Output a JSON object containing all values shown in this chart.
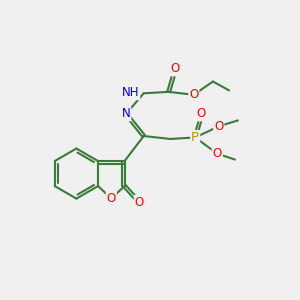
{
  "bg_color": "#f0f0f0",
  "bond_color": "#3a7a3a",
  "bond_width": 1.5,
  "atom_colors": {
    "O": "#ff0000",
    "N": "#0000cc",
    "P": "#cc8800",
    "H": "#5a9a5a"
  },
  "font_size": 8.5,
  "fig_width": 3.0,
  "fig_height": 3.0,
  "dpi": 100
}
